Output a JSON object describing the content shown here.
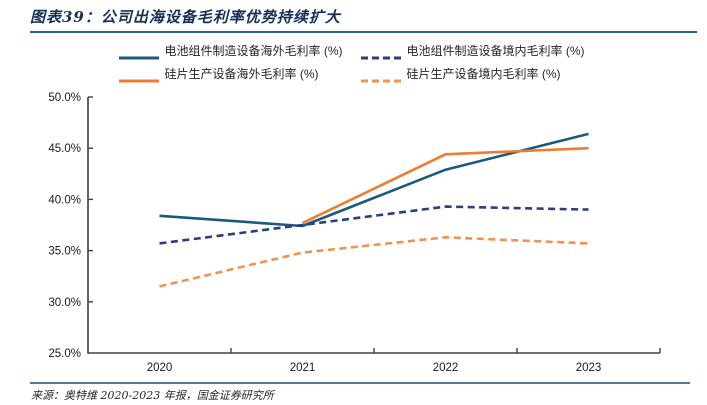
{
  "header": {
    "title": "图表39：公司出海设备毛利率优势持续扩大"
  },
  "footer": {
    "source": "来源：奥特维 2020-2023 年报，国金证券研究所"
  },
  "colors": {
    "title_text": "#14305a",
    "title_rule": "#2e5f92",
    "source_rule": "#53799b",
    "axis": "#404040",
    "battery_overseas": "#1b5a7e",
    "battery_domestic": "#2b3e7e",
    "wafer_overseas": "#ef7b30",
    "wafer_domestic": "#f3924f"
  },
  "chart_data": {
    "type": "line",
    "categories": [
      "2020",
      "2021",
      "2022",
      "2023"
    ],
    "series": [
      {
        "name": "电池组件制造设备海外毛利率 (%)",
        "values": [
          38.4,
          37.4,
          42.9,
          46.4
        ],
        "color": "#1b5a7e",
        "style": "solid"
      },
      {
        "name": "电池组件制造设备境内毛利率 (%)",
        "values": [
          35.7,
          37.5,
          39.3,
          39.0
        ],
        "color": "#2b3e7e",
        "style": "dashed"
      },
      {
        "name": "硅片生产设备海外毛利率 (%)",
        "values": [
          null,
          37.7,
          44.4,
          45.0
        ],
        "color": "#ef7b30",
        "style": "solid"
      },
      {
        "name": "硅片生产设备境内毛利率 (%)",
        "values": [
          31.5,
          34.8,
          36.3,
          35.7
        ],
        "color": "#f3924f",
        "style": "dashed"
      }
    ],
    "ylim": [
      25,
      50
    ],
    "y_tick_step": 5,
    "y_ticks": [
      "25.0%",
      "30.0%",
      "35.0%",
      "40.0%",
      "45.0%",
      "50.0%"
    ],
    "xlabel": "",
    "ylabel": "",
    "grid": false,
    "legend_position": "top"
  }
}
